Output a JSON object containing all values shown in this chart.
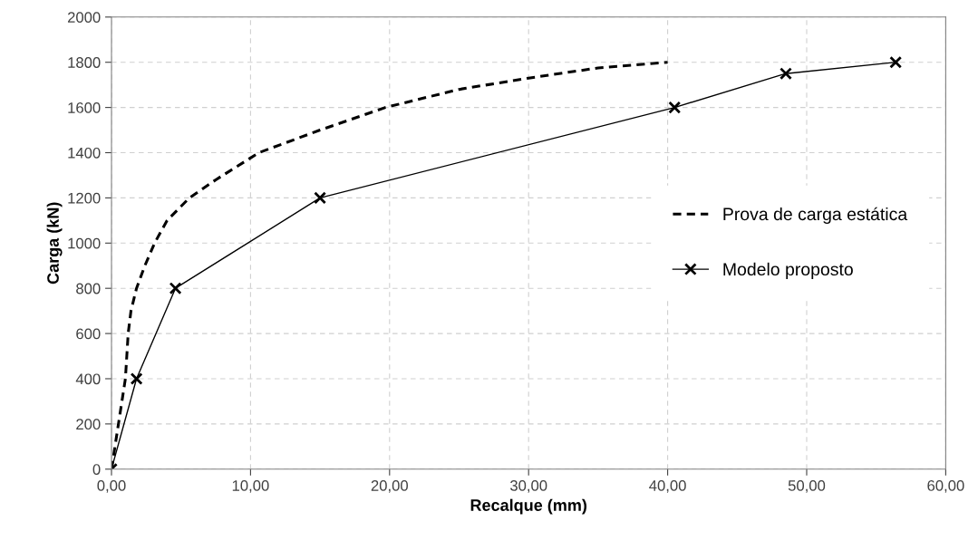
{
  "chart_data": {
    "type": "line",
    "xlabel": "Recalque (mm)",
    "ylabel": "Carga (kN)",
    "xlim": [
      0,
      60
    ],
    "ylim": [
      0,
      2000
    ],
    "xticks": [
      {
        "value": 0,
        "label": "0,00"
      },
      {
        "value": 10,
        "label": "10,00"
      },
      {
        "value": 20,
        "label": "20,00"
      },
      {
        "value": 30,
        "label": "30,00"
      },
      {
        "value": 40,
        "label": "40,00"
      },
      {
        "value": 50,
        "label": "50,00"
      },
      {
        "value": 60,
        "label": "60,00"
      }
    ],
    "yticks": [
      0,
      200,
      400,
      600,
      800,
      1000,
      1200,
      1400,
      1600,
      1800,
      2000
    ],
    "grid": true,
    "legend": "right",
    "series": [
      {
        "name": "Prova de carga estática",
        "color": "#000000",
        "line_style": "dashed",
        "marker": "none",
        "x": [
          0,
          0.5,
          1.0,
          1.2,
          1.4,
          1.8,
          2.4,
          3.1,
          4.0,
          5.6,
          7.5,
          10.6,
          15,
          19.7,
          25,
          30,
          35,
          40
        ],
        "values": [
          0,
          200,
          400,
          600,
          700,
          800,
          900,
          1000,
          1100,
          1200,
          1280,
          1400,
          1500,
          1600,
          1680,
          1730,
          1775,
          1800
        ]
      },
      {
        "name": "Modelo proposto",
        "color": "#000000",
        "line_style": "solid",
        "marker": "cross",
        "x": [
          0,
          1.8,
          4.6,
          15,
          40.5,
          48.5,
          56.4
        ],
        "values": [
          0,
          400,
          800,
          1200,
          1600,
          1750,
          1800
        ]
      }
    ]
  }
}
